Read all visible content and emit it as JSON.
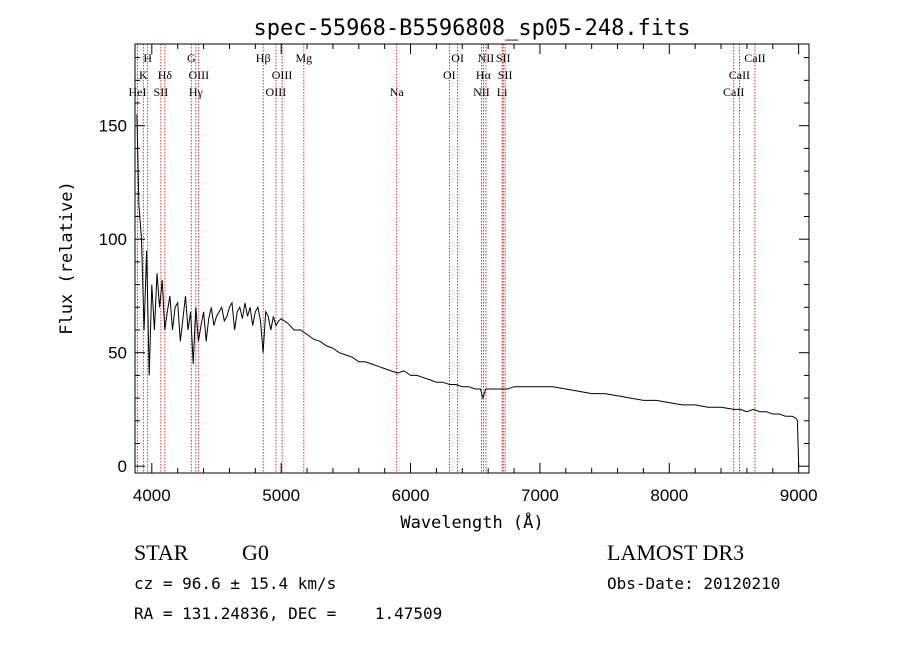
{
  "chart_data": {
    "type": "line",
    "title": "spec-55968-B5596808_sp05-248.fits",
    "xlabel": "Wavelength (Å)",
    "ylabel": "Flux (relative)",
    "xlim": [
      3870,
      9080
    ],
    "ylim": [
      -3,
      186
    ],
    "x_ticks": [
      4000,
      5000,
      6000,
      7000,
      8000,
      9000
    ],
    "x_tick_labels": [
      "4000",
      "5000",
      "6000",
      "7000",
      "8000",
      "9000"
    ],
    "y_ticks": [
      0,
      50,
      100,
      150
    ],
    "y_tick_labels": [
      "0",
      "50",
      "100",
      "150"
    ],
    "grid": false,
    "series": [
      {
        "name": "flux",
        "x": [
          3885,
          3900,
          3920,
          3940,
          3960,
          3980,
          4000,
          4020,
          4040,
          4060,
          4080,
          4100,
          4120,
          4140,
          4160,
          4180,
          4200,
          4220,
          4240,
          4260,
          4280,
          4300,
          4320,
          4340,
          4360,
          4380,
          4400,
          4420,
          4440,
          4460,
          4480,
          4500,
          4520,
          4540,
          4560,
          4580,
          4600,
          4620,
          4640,
          4660,
          4680,
          4700,
          4720,
          4740,
          4760,
          4780,
          4800,
          4820,
          4840,
          4860,
          4880,
          4900,
          4920,
          4940,
          4960,
          4980,
          5000,
          5050,
          5100,
          5150,
          5200,
          5250,
          5300,
          5350,
          5400,
          5450,
          5500,
          5550,
          5600,
          5650,
          5700,
          5750,
          5800,
          5850,
          5900,
          5950,
          6000,
          6050,
          6100,
          6150,
          6200,
          6250,
          6300,
          6350,
          6400,
          6450,
          6500,
          6540,
          6560,
          6580,
          6600,
          6650,
          6700,
          6750,
          6800,
          6850,
          6900,
          6950,
          7000,
          7100,
          7200,
          7300,
          7400,
          7500,
          7600,
          7700,
          7800,
          7900,
          8000,
          8100,
          8200,
          8300,
          8400,
          8500,
          8550,
          8600,
          8650,
          8700,
          8750,
          8800,
          8850,
          8900,
          8950,
          8980,
          8990,
          9000
        ],
        "y": [
          155,
          115,
          100,
          60,
          95,
          40,
          80,
          60,
          85,
          70,
          82,
          60,
          68,
          75,
          60,
          70,
          72,
          55,
          65,
          75,
          60,
          68,
          45,
          70,
          55,
          62,
          68,
          55,
          65,
          70,
          62,
          66,
          68,
          70,
          64,
          66,
          70,
          72,
          60,
          68,
          70,
          65,
          72,
          66,
          70,
          62,
          68,
          70,
          64,
          50,
          68,
          66,
          60,
          66,
          62,
          64,
          65,
          63,
          60,
          60,
          58,
          56,
          55,
          53,
          52,
          50,
          49,
          48,
          46,
          46,
          45,
          44,
          43,
          42,
          41,
          42,
          40,
          40,
          39,
          38,
          37,
          37,
          36,
          36,
          35,
          35,
          34,
          34,
          30,
          34,
          34,
          34,
          34,
          34,
          35,
          35,
          35,
          35,
          35,
          35,
          34,
          33,
          32,
          32,
          31,
          30,
          29,
          29,
          28,
          27,
          27,
          26,
          26,
          25,
          25,
          24,
          25,
          24,
          24,
          23,
          23,
          22,
          22,
          21,
          20,
          0
        ]
      }
    ],
    "line_markers": [
      {
        "label": "H",
        "x": 3968,
        "row": 0
      },
      {
        "label": "K",
        "x": 3934,
        "row": 1
      },
      {
        "label": "HeI",
        "x": 3889,
        "row": 2
      },
      {
        "label": "SII",
        "x": 4070,
        "row": 2
      },
      {
        "label": "Hδ",
        "x": 4101,
        "row": 1
      },
      {
        "label": "G",
        "x": 4305,
        "row": 0
      },
      {
        "label": "OIII",
        "x": 4363,
        "row": 1
      },
      {
        "label": "Hγ",
        "x": 4340,
        "row": 2
      },
      {
        "label": "Hβ",
        "x": 4861,
        "row": 0
      },
      {
        "label": "OIII",
        "x": 5007,
        "row": 1
      },
      {
        "label": "OIII",
        "x": 4959,
        "row": 2
      },
      {
        "label": "Mg",
        "x": 5175,
        "row": 0
      },
      {
        "label": "Na",
        "x": 5893,
        "row": 2
      },
      {
        "label": "OI",
        "x": 6364,
        "row": 0
      },
      {
        "label": "OI",
        "x": 6300,
        "row": 1
      },
      {
        "label": "NII",
        "x": 6583,
        "row": 0
      },
      {
        "label": "SII",
        "x": 6716,
        "row": 0
      },
      {
        "label": "Hα",
        "x": 6563,
        "row": 1
      },
      {
        "label": "SII",
        "x": 6731,
        "row": 1
      },
      {
        "label": "NII",
        "x": 6548,
        "row": 2
      },
      {
        "label": "Li",
        "x": 6708,
        "row": 2
      },
      {
        "label": "CaII",
        "x": 8662,
        "row": 0
      },
      {
        "label": "CaII",
        "x": 8542,
        "row": 1
      },
      {
        "label": "CaII",
        "x": 8498,
        "row": 2
      }
    ],
    "colors": {
      "spectrum": "#000000",
      "marker_line": "#cc0000",
      "axis": "#000000"
    }
  },
  "info": {
    "object_class": "STAR",
    "subclass": "G0",
    "survey": "LAMOST DR3",
    "cz": "cz = 96.6 ± 15.4 km/s",
    "obs_date": "Obs-Date: 20120210",
    "coords": "RA = 131.24836, DEC =    1.47509"
  }
}
